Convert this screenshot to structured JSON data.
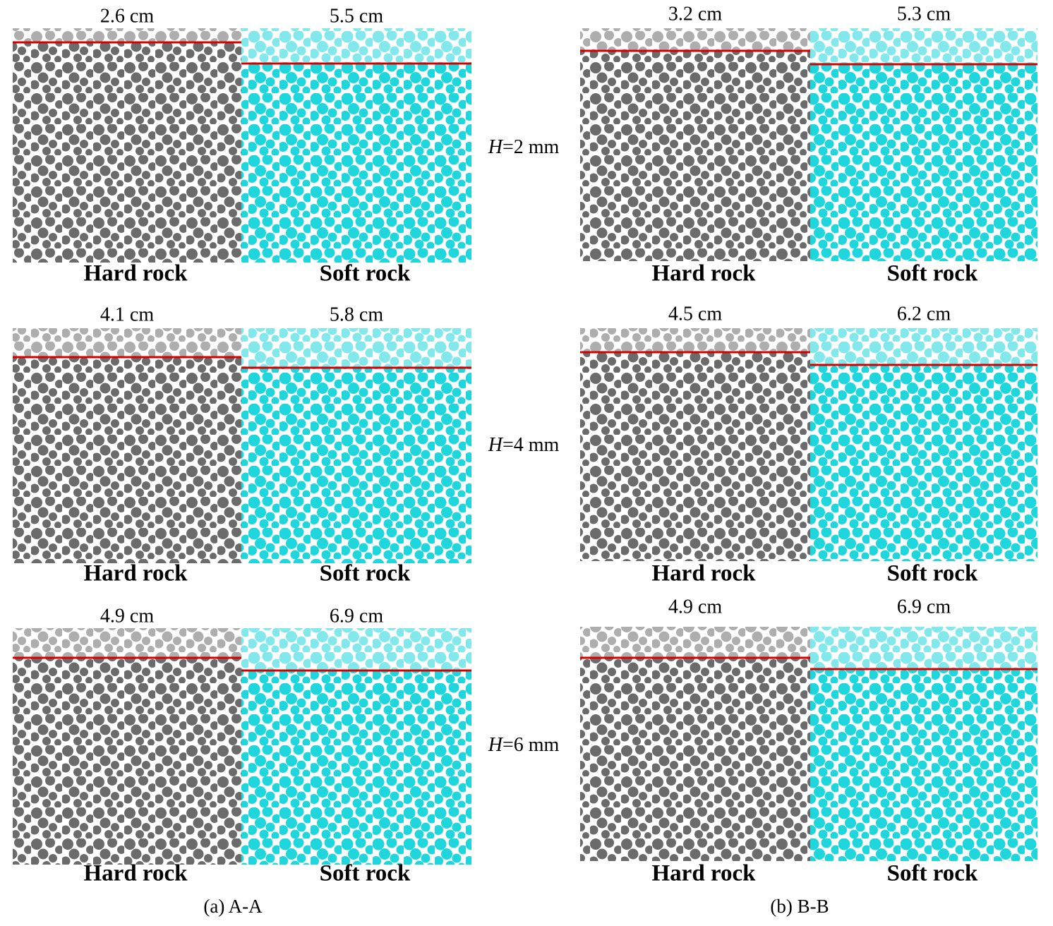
{
  "columns": [
    {
      "caption": "(a) A-A",
      "rows": [
        {
          "hard_depth": "2.6 cm",
          "soft_depth": "5.5 cm",
          "hard_label": "Hard rock",
          "soft_label": "Soft rock"
        },
        {
          "hard_depth": "4.1 cm",
          "soft_depth": "5.8 cm",
          "hard_label": "Hard rock",
          "soft_label": "Soft rock"
        },
        {
          "hard_depth": "4.9 cm",
          "soft_depth": "6.9 cm",
          "hard_label": "Hard rock",
          "soft_label": "Soft rock"
        }
      ]
    },
    {
      "caption": "(b) B-B",
      "rows": [
        {
          "hard_depth": "3.2 cm",
          "soft_depth": "5.3 cm",
          "hard_label": "Hard rock",
          "soft_label": "Soft rock"
        },
        {
          "hard_depth": "4.5 cm",
          "soft_depth": "6.2 cm",
          "hard_label": "Hard rock",
          "soft_label": "Soft rock"
        },
        {
          "hard_depth": "4.9 cm",
          "soft_depth": "6.9 cm",
          "hard_label": "Hard rock",
          "soft_label": "Soft rock"
        }
      ]
    }
  ],
  "h_labels": [
    {
      "symbol": "H",
      "text": "=2 mm"
    },
    {
      "symbol": "H",
      "text": "=4 mm"
    },
    {
      "symbol": "H",
      "text": "=6 mm"
    }
  ]
}
